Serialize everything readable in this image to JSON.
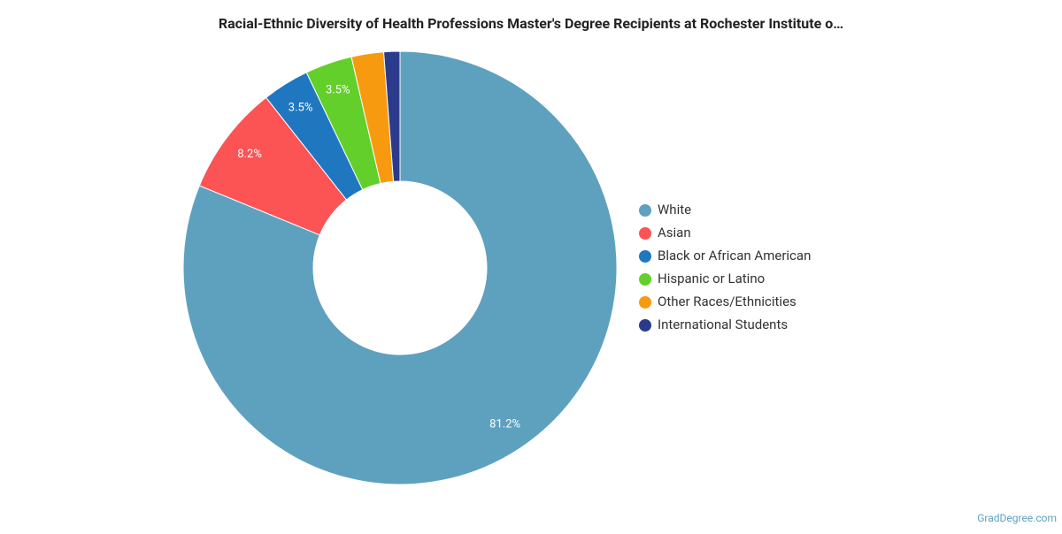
{
  "chart_data": {
    "type": "donut",
    "title": "Racial-Ethnic Diversity of Health Professions Master's Degree Recipients at Rochester Institute o…",
    "categories": [
      "White",
      "Asian",
      "Black or African American",
      "Hispanic or Latino",
      "Other Races/Ethnicities",
      "International Students"
    ],
    "values": [
      81.2,
      8.2,
      3.5,
      3.5,
      2.4,
      1.2
    ],
    "value_labels": [
      "81.2%",
      "8.2%",
      "3.5%",
      "3.5%",
      null,
      null
    ],
    "colors": [
      "#5ea1bf",
      "#fc5355",
      "#1f77c0",
      "#63cf2b",
      "#f89a10",
      "#2c3a8c"
    ],
    "legend": "right",
    "credit": "GradDegree.com"
  }
}
